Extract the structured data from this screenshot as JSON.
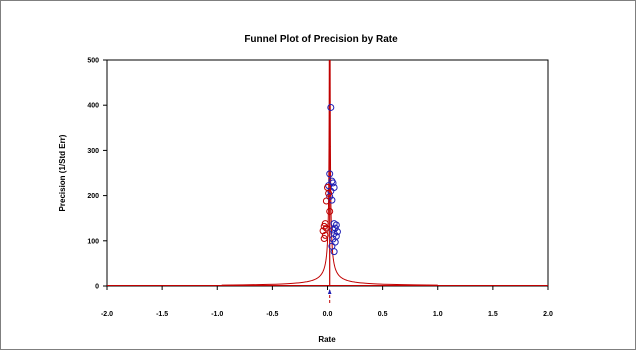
{
  "chart_data": {
    "type": "scatter",
    "title": "Funnel Plot of Precision by Rate",
    "xlabel": "Rate",
    "ylabel": "Precision (1/Std Err)",
    "xlim": [
      -2.0,
      2.0
    ],
    "ylim": [
      0,
      500
    ],
    "x_ticks": [
      "-2.0",
      "-1.5",
      "-1.0",
      "-0.5",
      "0.0",
      "0.5",
      "1.0",
      "1.5",
      "2.0"
    ],
    "y_ticks": [
      "0",
      "100",
      "200",
      "300",
      "400",
      "500"
    ],
    "grid": false,
    "legend": "none",
    "pooled_estimate": 0.02,
    "funnel_constant": 1.96,
    "colors": {
      "observed": "#1f1fb4",
      "imputed": "#c00000",
      "funnel": "#c00000"
    },
    "series": [
      {
        "kind": "observed",
        "points": [
          {
            "x": 0.03,
            "y": 395
          },
          {
            "x": 0.02,
            "y": 248
          },
          {
            "x": 0.04,
            "y": 232
          },
          {
            "x": 0.05,
            "y": 228
          },
          {
            "x": 0.01,
            "y": 222
          },
          {
            "x": 0.06,
            "y": 218
          },
          {
            "x": 0.03,
            "y": 210
          },
          {
            "x": 0.02,
            "y": 198
          },
          {
            "x": 0.04,
            "y": 190
          },
          {
            "x": 0.06,
            "y": 138
          },
          {
            "x": 0.08,
            "y": 135
          },
          {
            "x": 0.07,
            "y": 128
          },
          {
            "x": 0.05,
            "y": 124
          },
          {
            "x": 0.09,
            "y": 120
          },
          {
            "x": 0.06,
            "y": 116
          },
          {
            "x": 0.08,
            "y": 110
          },
          {
            "x": 0.05,
            "y": 104
          },
          {
            "x": 0.07,
            "y": 97
          },
          {
            "x": 0.04,
            "y": 88
          },
          {
            "x": 0.06,
            "y": 76
          }
        ]
      },
      {
        "kind": "imputed",
        "points": [
          {
            "x": 0.0,
            "y": 218
          },
          {
            "x": 0.01,
            "y": 205
          },
          {
            "x": -0.01,
            "y": 188
          },
          {
            "x": 0.02,
            "y": 165
          },
          {
            "x": -0.02,
            "y": 138
          },
          {
            "x": -0.03,
            "y": 132
          },
          {
            "x": -0.01,
            "y": 128
          },
          {
            "x": -0.04,
            "y": 122
          },
          {
            "x": -0.02,
            "y": 112
          },
          {
            "x": -0.03,
            "y": 105
          }
        ]
      }
    ]
  }
}
